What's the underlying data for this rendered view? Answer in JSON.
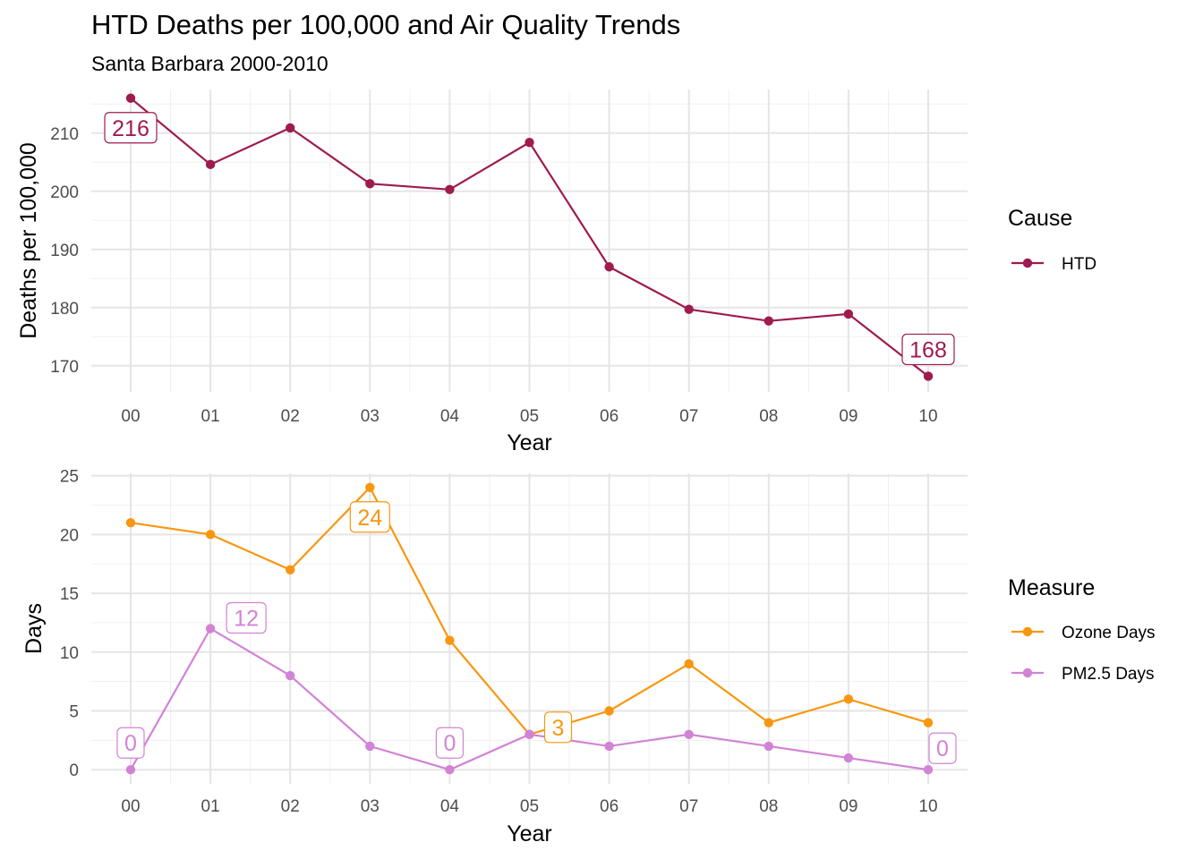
{
  "chart_title": "HTD Deaths per 100,000 and Air Quality Trends",
  "chart_subtitle": "Santa Barbara 2000-2010",
  "colors": {
    "htd": "#9E1B4F",
    "ozone": "#F8970F",
    "pm25": "#D283D6",
    "grid": "#e5e5e5",
    "tick_text": "#4d4d4d"
  },
  "chart_data": [
    {
      "type": "line",
      "title": "HTD Deaths per 100,000 and Air Quality Trends",
      "subtitle": "Santa Barbara 2000-2010",
      "xlabel": "Year",
      "ylabel": "Deaths per 100,000",
      "categories": [
        "00",
        "01",
        "02",
        "03",
        "04",
        "05",
        "06",
        "07",
        "08",
        "09",
        "10"
      ],
      "ylim": [
        165.5,
        217.5
      ],
      "yticks": [
        170,
        180,
        190,
        200,
        210
      ],
      "grid": true,
      "legend_title": "Cause",
      "legend_position": "right",
      "series": [
        {
          "name": "HTD",
          "color": "#9E1B4F",
          "values": [
            216.0,
            204.6,
            210.9,
            201.3,
            200.3,
            208.4,
            187.0,
            179.7,
            177.7,
            178.9,
            168.2
          ],
          "labels": [
            {
              "index": 0,
              "text": "216"
            },
            {
              "index": 10,
              "text": "168"
            }
          ]
        }
      ]
    },
    {
      "type": "line",
      "xlabel": "Year",
      "ylabel": "Days",
      "categories": [
        "00",
        "01",
        "02",
        "03",
        "04",
        "05",
        "06",
        "07",
        "08",
        "09",
        "10"
      ],
      "ylim": [
        -1.2,
        25.2
      ],
      "yticks": [
        0,
        5,
        10,
        15,
        20,
        25
      ],
      "grid": true,
      "legend_title": "Measure",
      "legend_position": "right",
      "series": [
        {
          "name": "Ozone Days",
          "color": "#F8970F",
          "values": [
            21,
            20,
            17,
            24,
            11,
            3,
            5,
            9,
            4,
            6,
            4
          ],
          "labels": [
            {
              "index": 3,
              "text": "24"
            },
            {
              "index": 5,
              "text": "3"
            }
          ]
        },
        {
          "name": "PM2.5 Days",
          "color": "#D283D6",
          "values": [
            0,
            12,
            8,
            2,
            0,
            3,
            2,
            3,
            2,
            1,
            0
          ],
          "labels": [
            {
              "index": 0,
              "text": "0"
            },
            {
              "index": 1,
              "text": "12"
            },
            {
              "index": 4,
              "text": "0"
            },
            {
              "index": 10,
              "text": "0"
            }
          ]
        }
      ]
    }
  ]
}
